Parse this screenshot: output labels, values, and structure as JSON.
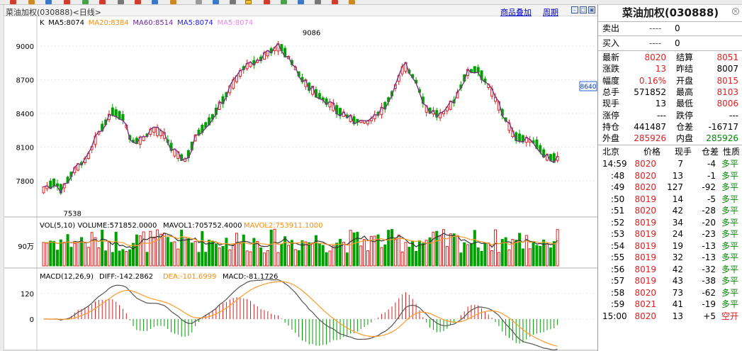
{
  "chart": {
    "window_title": "菜油加权(030888)<日线>",
    "overlay_label": "商品叠加",
    "period_label": "周期",
    "price_marker": "8640",
    "main_legend": [
      {
        "text": "K",
        "color": "#000000"
      },
      {
        "text": "MA5:8074",
        "color": "#000000"
      },
      {
        "text": "MA20:8384",
        "color": "#ff8c00"
      },
      {
        "text": "MA60:8514",
        "color": "#6a2c91"
      },
      {
        "text": "MA5:8074",
        "color": "#1a1aff"
      },
      {
        "text": "MA5:8074",
        "color": "#ee82ee"
      }
    ],
    "price_labels": [
      "9000",
      "8700",
      "8400",
      "8100",
      "7800"
    ],
    "high_label": "9086",
    "low_label": "7538",
    "vol_legend": [
      {
        "text": "VOL(5,10) VOLUME:571852.0000",
        "color": "#000000"
      },
      {
        "text": "MAVOL1:705752.4000",
        "color": "#000000"
      },
      {
        "text": "MAVOL2:753911.1000",
        "color": "#ff8c00"
      }
    ],
    "vol_axis_label": "90万",
    "macd_legend": [
      {
        "text": "MACD(12,26,9)",
        "color": "#000000"
      },
      {
        "text": "DIFF:-142.2862",
        "color": "#000000"
      },
      {
        "text": "DEA:-101.6999",
        "color": "#ff8c00"
      },
      {
        "text": "MACD:-81.1726",
        "color": "#000000"
      }
    ],
    "macd_labels": [
      "120",
      "0"
    ]
  },
  "quote": {
    "title": "菜油加权(030888)",
    "sell_label": "卖出",
    "sell_dash": "----",
    "sell_value": "0",
    "buy_label": "买入",
    "buy_dash": "----",
    "buy_value": "0",
    "stats": [
      {
        "l1": "最新",
        "v1": "8020",
        "c1": "red",
        "l2": "结算",
        "v2": "8051",
        "c2": "red"
      },
      {
        "l1": "涨跌",
        "v1": "13",
        "c1": "red",
        "l2": "昨结",
        "v2": "8007",
        "c2": "black"
      },
      {
        "l1": "幅度",
        "v1": "0.16%",
        "c1": "red",
        "l2": "开盘",
        "v2": "8015",
        "c2": "red"
      },
      {
        "l1": "总手",
        "v1": "571852",
        "c1": "black",
        "l2": "最高",
        "v2": "8103",
        "c2": "red"
      },
      {
        "l1": "现手",
        "v1": "13",
        "c1": "black",
        "l2": "最低",
        "v2": "8006",
        "c2": "red"
      },
      {
        "l1": "涨停",
        "v1": "---",
        "c1": "black",
        "l2": "跌停",
        "v2": "---",
        "c2": "black"
      },
      {
        "l1": "持仓",
        "v1": "441487",
        "c1": "black",
        "l2": "仓差",
        "v2": "-16717",
        "c2": "black"
      },
      {
        "l1": "外盘",
        "v1": "285926",
        "c1": "red",
        "l2": "内盘",
        "v2": "285926",
        "c2": "green"
      }
    ],
    "ticks_header": [
      "北京",
      "价格",
      "现手",
      "仓差",
      "性质"
    ],
    "ticks": [
      {
        "time": "14:59",
        "price": "8020",
        "vol": "7",
        "diff": "-4",
        "nature": "多平",
        "nc": "green"
      },
      {
        "time": ":48",
        "price": "8020",
        "vol": "13",
        "diff": "-1",
        "nature": "多平",
        "nc": "green"
      },
      {
        "time": ":49",
        "price": "8020",
        "vol": "127",
        "diff": "-92",
        "nature": "多平",
        "nc": "green"
      },
      {
        "time": ":50",
        "price": "8019",
        "vol": "14",
        "diff": "-5",
        "nature": "多平",
        "nc": "green"
      },
      {
        "time": ":51",
        "price": "8020",
        "vol": "42",
        "diff": "-28",
        "nature": "多平",
        "nc": "green"
      },
      {
        "time": ":52",
        "price": "8019",
        "vol": "34",
        "diff": "-20",
        "nature": "多平",
        "nc": "green"
      },
      {
        "time": ":53",
        "price": "8019",
        "vol": "24",
        "diff": "-23",
        "nature": "多平",
        "nc": "green"
      },
      {
        "time": ":54",
        "price": "8019",
        "vol": "19",
        "diff": "-13",
        "nature": "多平",
        "nc": "green"
      },
      {
        "time": ":55",
        "price": "8019",
        "vol": "32",
        "diff": "-13",
        "nature": "多平",
        "nc": "green"
      },
      {
        "time": ":56",
        "price": "8019",
        "vol": "42",
        "diff": "-32",
        "nature": "多平",
        "nc": "green"
      },
      {
        "time": ":57",
        "price": "8019",
        "vol": "43",
        "diff": "-38",
        "nature": "多平",
        "nc": "green"
      },
      {
        "time": ":58",
        "price": "8020",
        "vol": "73",
        "diff": "-62",
        "nature": "多平",
        "nc": "green"
      },
      {
        "time": ":59",
        "price": "8021",
        "vol": "41",
        "diff": "-19",
        "nature": "多平",
        "nc": "green"
      },
      {
        "time": "15:00",
        "price": "8020",
        "vol": "13",
        "diff": "+5",
        "nature": "空开",
        "nc": "red"
      }
    ]
  }
}
